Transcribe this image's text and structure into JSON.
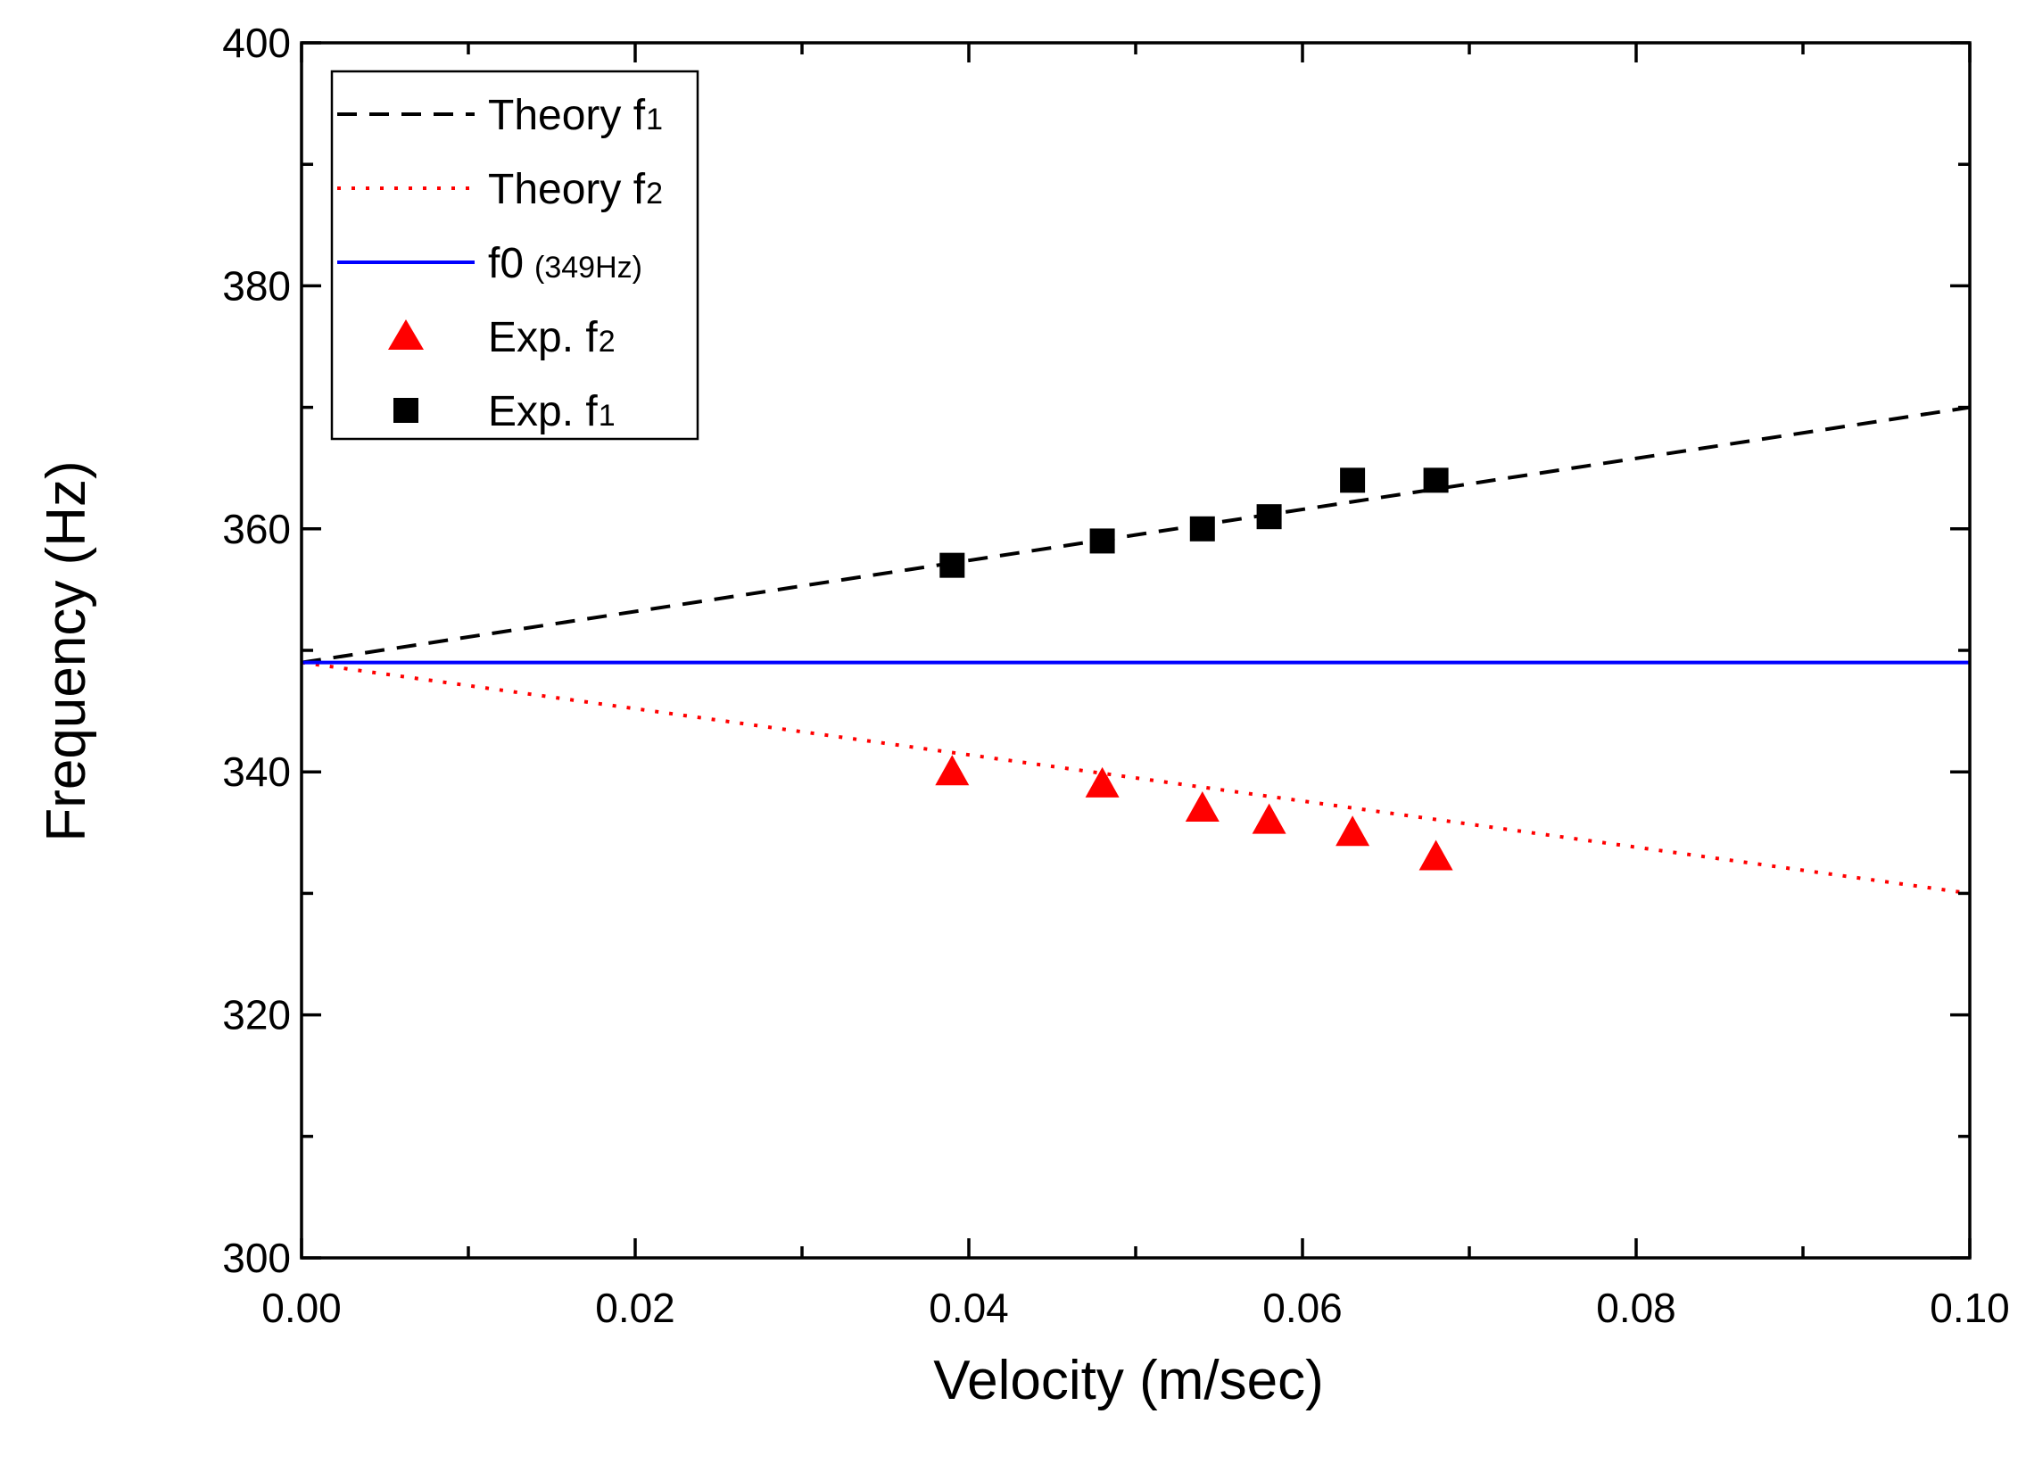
{
  "chart_data": {
    "type": "line",
    "title": "",
    "xlabel": "Velocity (m/sec)",
    "ylabel": "Frequency (Hz)",
    "xlim": [
      0.0,
      0.1
    ],
    "ylim": [
      300,
      400
    ],
    "x_ticks": [
      0.0,
      0.02,
      0.04,
      0.06,
      0.08,
      0.1
    ],
    "x_tick_labels": [
      "0.00",
      "0.02",
      "0.04",
      "0.06",
      "0.08",
      "0.10"
    ],
    "x_minor_step": 0.01,
    "y_ticks": [
      300,
      320,
      340,
      360,
      380,
      400
    ],
    "y_tick_labels": [
      "300",
      "320",
      "340",
      "360",
      "380",
      "400"
    ],
    "y_minor_step": 10,
    "grid": false,
    "legend_position": "top-left",
    "series": [
      {
        "name": "Theory f1",
        "legend_main": "Theory f",
        "legend_sub": "1",
        "style": "dashed",
        "color": "#000000",
        "x": [
          0.0,
          0.1
        ],
        "y": [
          349,
          370
        ]
      },
      {
        "name": "Theory f2",
        "legend_main": "Theory f",
        "legend_sub": "2",
        "style": "dotted",
        "color": "#ff0000",
        "x": [
          0.0,
          0.1
        ],
        "y": [
          349,
          330
        ]
      },
      {
        "name": "f0 (349Hz)",
        "legend_main": "f0",
        "legend_sub": "(349Hz)",
        "style": "solid",
        "color": "#0000ff",
        "x": [
          0.0,
          0.1
        ],
        "y": [
          349,
          349
        ]
      },
      {
        "name": "Exp. f2",
        "legend_main": "Exp. f",
        "legend_sub": "2",
        "style": "triangle",
        "color": "#ff0000",
        "x": [
          0.039,
          0.048,
          0.054,
          0.058,
          0.063,
          0.068
        ],
        "y": [
          340,
          339,
          337,
          336,
          335,
          333
        ]
      },
      {
        "name": "Exp. f1",
        "legend_main": "Exp. f",
        "legend_sub": "1",
        "style": "square",
        "color": "#000000",
        "x": [
          0.039,
          0.048,
          0.054,
          0.058,
          0.063,
          0.068
        ],
        "y": [
          357,
          359,
          360,
          361,
          364,
          364
        ]
      }
    ]
  }
}
